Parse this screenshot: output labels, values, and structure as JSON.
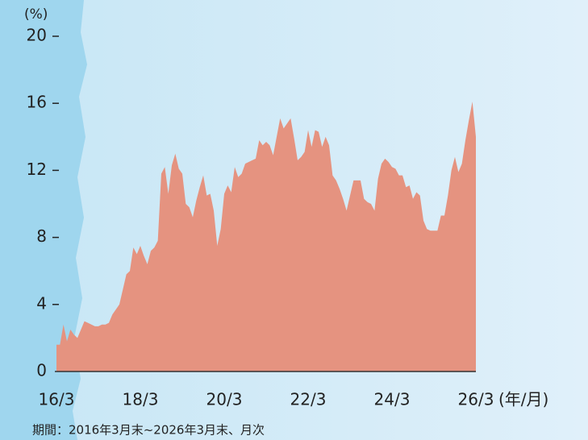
{
  "chart_data": {
    "type": "area",
    "y_axis_label": "(%)",
    "x_axis_label": "(年/月)",
    "footnote": "期間：2016年3月末~2026年3月末、月次",
    "categories": [
      "16/3",
      null,
      null,
      null,
      null,
      null,
      null,
      null,
      null,
      null,
      null,
      null,
      null,
      null,
      null,
      null,
      null,
      null,
      null,
      null,
      null,
      null,
      null,
      null,
      "18/3",
      null,
      null,
      null,
      null,
      null,
      null,
      null,
      null,
      null,
      null,
      null,
      null,
      null,
      null,
      null,
      null,
      null,
      null,
      null,
      null,
      null,
      null,
      null,
      "20/3",
      null,
      null,
      null,
      null,
      null,
      null,
      null,
      null,
      null,
      null,
      null,
      null,
      null,
      null,
      null,
      null,
      null,
      null,
      null,
      null,
      null,
      null,
      null,
      "22/3",
      null,
      null,
      null,
      null,
      null,
      null,
      null,
      null,
      null,
      null,
      null,
      null,
      null,
      null,
      null,
      null,
      null,
      null,
      null,
      null,
      null,
      null,
      null,
      "24/3",
      null,
      null,
      null,
      null,
      null,
      null,
      null,
      null,
      null,
      null,
      null,
      null,
      null,
      null,
      null,
      null,
      null,
      null,
      null,
      null,
      null,
      null,
      null,
      "26/3"
    ],
    "values": [
      1.6,
      1.6,
      2.8,
      1.8,
      2.5,
      2.2,
      2.0,
      2.5,
      3.0,
      2.9,
      2.8,
      2.7,
      2.7,
      2.8,
      2.8,
      2.9,
      3.4,
      3.7,
      4.0,
      4.9,
      5.8,
      6.0,
      7.4,
      7.0,
      7.5,
      6.9,
      6.4,
      7.2,
      7.4,
      7.8,
      11.8,
      12.2,
      10.6,
      12.3,
      13.0,
      12.1,
      11.8,
      10.0,
      9.8,
      9.2,
      10.2,
      11.0,
      11.7,
      10.5,
      10.6,
      9.6,
      7.5,
      8.5,
      10.6,
      11.1,
      10.7,
      12.2,
      11.6,
      11.8,
      12.4,
      12.5,
      12.6,
      12.7,
      13.8,
      13.5,
      13.7,
      13.5,
      12.9,
      14.0,
      15.1,
      14.5,
      14.8,
      15.1,
      13.9,
      12.6,
      12.8,
      13.1,
      14.4,
      13.4,
      14.4,
      14.3,
      13.4,
      14.0,
      13.5,
      11.7,
      11.4,
      10.9,
      10.3,
      9.6,
      10.5,
      11.4,
      11.4,
      11.4,
      10.3,
      10.1,
      10.0,
      9.6,
      11.5,
      12.4,
      12.7,
      12.5,
      12.2,
      12.1,
      11.7,
      11.7,
      11.0,
      11.1,
      10.3,
      10.7,
      10.5,
      9.0,
      8.5,
      8.4,
      8.4,
      8.4,
      9.3,
      9.3,
      10.5,
      12.0,
      12.8,
      11.9,
      12.4,
      13.8,
      15.0,
      16.1,
      14.0
    ],
    "color": "#e59380",
    "ylim": [
      0,
      20
    ],
    "yticks": [
      0,
      4,
      8,
      12,
      16,
      20
    ]
  }
}
